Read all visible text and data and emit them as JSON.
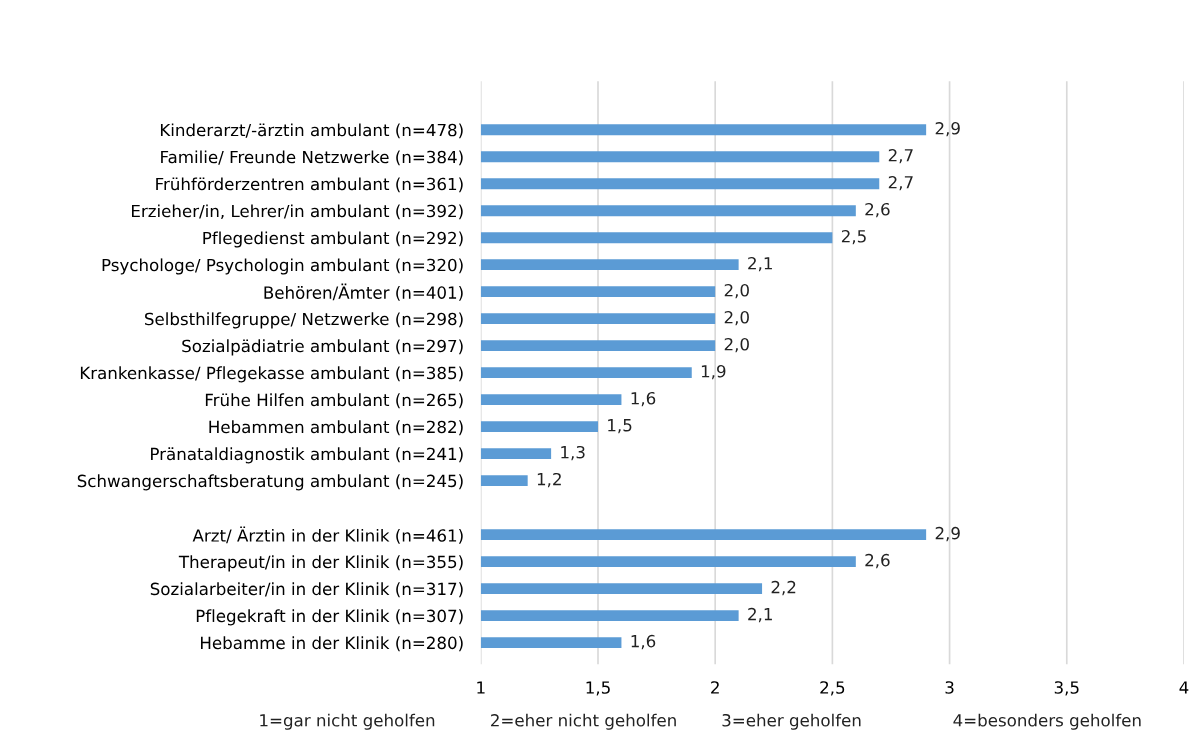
{
  "chart_data": {
    "type": "bar",
    "orientation": "horizontal",
    "categories": [
      "Kinderarzt/-ärztin ambulant (n=478)",
      "Familie/ Freunde Netzwerke (n=384)",
      "Frühförderzentren ambulant (n=361)",
      "Erzieher/in, Lehrer/in ambulant (n=392)",
      "Pflegedienst ambulant (n=292)",
      "Psychologe/ Psychologin ambulant (n=320)",
      "Behören/Ämter (n=401)",
      "Selbsthilfegruppe/ Netzwerke (n=298)",
      "Sozialpädiatrie ambulant (n=297)",
      "Krankenkasse/ Pflegekasse ambulant (n=385)",
      "Frühe Hilfen ambulant (n=265)",
      "Hebammen ambulant (n=282)",
      "Pränataldiagnostik ambulant (n=241)",
      "Schwangerschaftsberatung ambulant (n=245)",
      null,
      "Arzt/ Ärztin in der Klinik (n=461)",
      "Therapeut/in in der Klinik (n=355)",
      "Sozialarbeiter/in in der Klinik (n=317)",
      "Pflegekraft in der Klinik (n=307)",
      "Hebamme in der Klinik (n=280)"
    ],
    "values": [
      2.9,
      2.7,
      2.7,
      2.6,
      2.5,
      2.1,
      2.0,
      2.0,
      2.0,
      1.9,
      1.6,
      1.5,
      1.3,
      1.2,
      null,
      2.9,
      2.6,
      2.2,
      2.1,
      1.6
    ],
    "value_labels": [
      "2,9",
      "2,7",
      "2,7",
      "2,6",
      "2,5",
      "2,1",
      "2,0",
      "2,0",
      "2,0",
      "1,9",
      "1,6",
      "1,5",
      "1,3",
      "1,2",
      null,
      "2,9",
      "2,6",
      "2,2",
      "2,1",
      "1,6"
    ],
    "color": "#5b9bd5",
    "xlim": [
      1,
      4
    ],
    "xticks": [
      1,
      {
        "value": 1.5,
        "label": "1,5"
      },
      2,
      {
        "value": 2.5,
        "label": "2,5"
      },
      3,
      {
        "value": 3.5,
        "label": "3,5"
      },
      4
    ],
    "grid": "x",
    "annotations": [
      "1=gar nicht geholfen",
      "2=eher nicht geholfen",
      "3=eher geholfen",
      "4=besonders geholfen"
    ]
  }
}
